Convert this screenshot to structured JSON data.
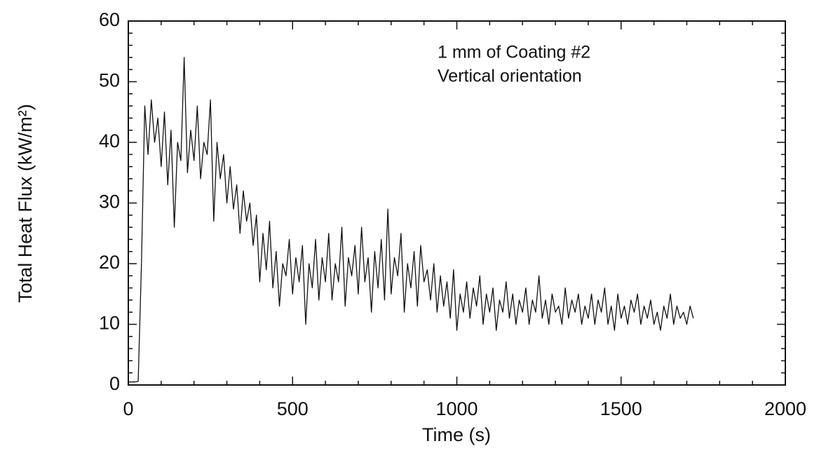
{
  "chart_data": {
    "type": "line",
    "xlabel": "Time (s)",
    "ylabel": "Total Heat Flux (kW/m²)",
    "annotations": [
      "1 mm of Coating #2",
      "Vertical orientation"
    ],
    "color": "#111111",
    "xlim": [
      0,
      2000
    ],
    "ylim": [
      0,
      60
    ],
    "xticks": [
      0,
      500,
      1000,
      1500,
      2000
    ],
    "yticks": [
      0,
      10,
      20,
      30,
      40,
      50,
      60
    ],
    "xminorticks": [
      100,
      200,
      300,
      400,
      600,
      700,
      800,
      900,
      1100,
      1200,
      1300,
      1400,
      1600,
      1700,
      1800,
      1900
    ],
    "yminorticks": [
      2,
      4,
      6,
      8,
      12,
      14,
      16,
      18,
      22,
      24,
      26,
      28,
      32,
      34,
      36,
      38,
      42,
      44,
      46,
      48,
      52,
      54,
      56,
      58
    ],
    "x": [
      0,
      10,
      20,
      30,
      40,
      50,
      60,
      70,
      80,
      90,
      100,
      110,
      120,
      130,
      140,
      150,
      160,
      170,
      180,
      190,
      200,
      210,
      220,
      230,
      240,
      250,
      260,
      270,
      280,
      290,
      300,
      310,
      320,
      330,
      340,
      350,
      360,
      370,
      380,
      390,
      400,
      410,
      420,
      430,
      440,
      450,
      460,
      470,
      480,
      490,
      500,
      510,
      520,
      530,
      540,
      550,
      560,
      570,
      580,
      590,
      600,
      610,
      620,
      630,
      640,
      650,
      660,
      670,
      680,
      690,
      700,
      710,
      720,
      730,
      740,
      750,
      760,
      770,
      780,
      790,
      800,
      810,
      820,
      830,
      840,
      850,
      860,
      870,
      880,
      890,
      900,
      910,
      920,
      930,
      940,
      950,
      960,
      970,
      980,
      990,
      1000,
      1010,
      1020,
      1030,
      1040,
      1050,
      1060,
      1070,
      1080,
      1090,
      1100,
      1110,
      1120,
      1130,
      1140,
      1150,
      1160,
      1170,
      1180,
      1190,
      1200,
      1210,
      1220,
      1230,
      1240,
      1250,
      1260,
      1270,
      1280,
      1290,
      1300,
      1310,
      1320,
      1330,
      1340,
      1350,
      1360,
      1370,
      1380,
      1390,
      1400,
      1410,
      1420,
      1430,
      1440,
      1450,
      1460,
      1470,
      1480,
      1490,
      1500,
      1510,
      1520,
      1530,
      1540,
      1550,
      1560,
      1570,
      1580,
      1590,
      1600,
      1610,
      1620,
      1630,
      1640,
      1650,
      1660,
      1670,
      1680,
      1690,
      1700,
      1710,
      1720
    ],
    "values": [
      0.5,
      0.5,
      0.5,
      0.6,
      20,
      46,
      38,
      47,
      40,
      44,
      36,
      45,
      33,
      42,
      26,
      40,
      37,
      54,
      35,
      42,
      37,
      46,
      34,
      40,
      38,
      47,
      27,
      40,
      34,
      38,
      30,
      36,
      29,
      33,
      25,
      32,
      27,
      30,
      23,
      28,
      17,
      25,
      19,
      27,
      16,
      22,
      13,
      20,
      18,
      24,
      15,
      21,
      17,
      23,
      10,
      20,
      16,
      24,
      14,
      21,
      17,
      25,
      14,
      20,
      17,
      26,
      13,
      21,
      18,
      23,
      15,
      26,
      17,
      21,
      12,
      22,
      16,
      24,
      14,
      29,
      15,
      21,
      18,
      25,
      12,
      20,
      16,
      22,
      13,
      23,
      17,
      19,
      14,
      20,
      12,
      18,
      13,
      17,
      11,
      19,
      9,
      15,
      12,
      17,
      11,
      16,
      13,
      18,
      10,
      15,
      12,
      16,
      9,
      14,
      12,
      17,
      11,
      15,
      10,
      14,
      12,
      16,
      10,
      14,
      12,
      18,
      11,
      14,
      10,
      15,
      12,
      13,
      10,
      16,
      11,
      14,
      12,
      15,
      10,
      13,
      11,
      15,
      10,
      14,
      12,
      16,
      10,
      13,
      9,
      15,
      11,
      13,
      10,
      14,
      12,
      15,
      10,
      13,
      11,
      14,
      10,
      12,
      9,
      13,
      11,
      15,
      10,
      13,
      11,
      12,
      10,
      13,
      11
    ]
  }
}
